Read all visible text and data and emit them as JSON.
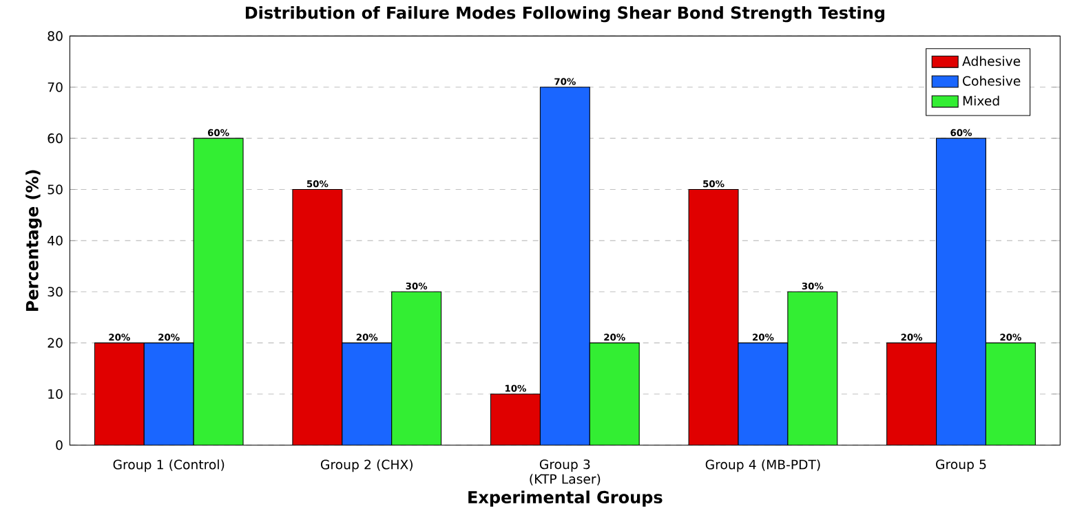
{
  "chart_data": {
    "type": "bar",
    "title": "Distribution of Failure Modes Following Shear Bond Strength Testing",
    "xlabel": "Experimental Groups",
    "ylabel": "Percentage (%)",
    "categories": [
      "Group 1 (Control)",
      "Group 2 (CHX)",
      "Group 3 (KTP Laser)",
      "Group 4 (MB-PDT)",
      "Group 5"
    ],
    "series": [
      {
        "name": "Adhesive",
        "color": "#e00000",
        "values": [
          20,
          50,
          10,
          50,
          20
        ],
        "value_labels": [
          "20%",
          "50%",
          "10%",
          "50%",
          "20%"
        ]
      },
      {
        "name": "Cohesive",
        "color": "#1a66ff",
        "values": [
          20,
          20,
          70,
          20,
          60
        ],
        "value_labels": [
          "20%",
          "20%",
          "70%",
          "20%",
          "60%"
        ]
      },
      {
        "name": "Mixed",
        "color": "#33ee33",
        "values": [
          60,
          30,
          20,
          30,
          20
        ],
        "value_labels": [
          "60%",
          "30%",
          "20%",
          "30%",
          "20%"
        ]
      }
    ],
    "ylim": [
      0,
      80
    ],
    "yticks": [
      0,
      10,
      20,
      30,
      40,
      50,
      60,
      70,
      80
    ],
    "grid": "y",
    "legend": "top right"
  }
}
